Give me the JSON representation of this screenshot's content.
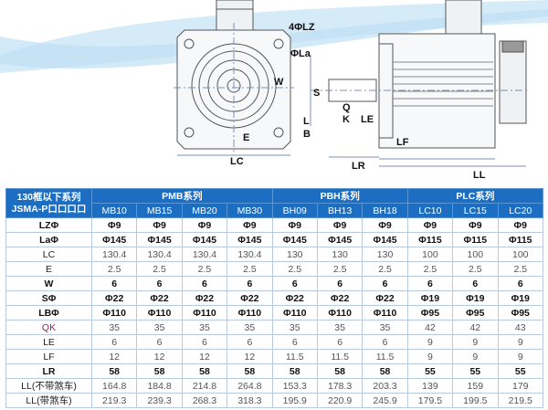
{
  "diagram": {
    "labels": {
      "lz": "4ΦLZ",
      "la": "ΦLa",
      "w": "W",
      "e": "E",
      "lc": "LC",
      "s": "S",
      "q": "Q",
      "k": "K",
      "le": "LE",
      "l": "L",
      "b": "B",
      "lf": "LF",
      "lr": "LR",
      "ll": "LL"
    }
  },
  "table": {
    "corner": [
      "130框以下系列",
      "JSMA-P口口口口"
    ],
    "groups": [
      "PMB系列",
      "PBH系列",
      "PLC系列"
    ],
    "models": [
      "MB10",
      "MB15",
      "MB20",
      "MB30",
      "BH09",
      "BH13",
      "BH18",
      "LC10",
      "LC15",
      "LC20"
    ],
    "rows": [
      {
        "label": "LZΦ",
        "values": [
          "Φ9",
          "Φ9",
          "Φ9",
          "Φ9",
          "Φ9",
          "Φ9",
          "Φ9",
          "Φ9",
          "Φ9",
          "Φ9"
        ]
      },
      {
        "label": "LaΦ",
        "values": [
          "Φ145",
          "Φ145",
          "Φ145",
          "Φ145",
          "Φ145",
          "Φ145",
          "Φ145",
          "Φ115",
          "Φ115",
          "Φ115"
        ]
      },
      {
        "label": "LC",
        "values": [
          "130.4",
          "130.4",
          "130.4",
          "130.4",
          "130",
          "130",
          "130",
          "100",
          "100",
          "100"
        ]
      },
      {
        "label": "E",
        "values": [
          "2.5",
          "2.5",
          "2.5",
          "2.5",
          "2.5",
          "2.5",
          "2.5",
          "2.5",
          "2.5",
          "2.5"
        ]
      },
      {
        "label": "W",
        "values": [
          "6",
          "6",
          "6",
          "6",
          "6",
          "6",
          "6",
          "6",
          "6",
          "6"
        ]
      },
      {
        "label": "SΦ",
        "values": [
          "Φ22",
          "Φ22",
          "Φ22",
          "Φ22",
          "Φ22",
          "Φ22",
          "Φ22",
          "Φ19",
          "Φ19",
          "Φ19"
        ]
      },
      {
        "label": "LBΦ",
        "values": [
          "Φ110",
          "Φ110",
          "Φ110",
          "Φ110",
          "Φ110",
          "Φ110",
          "Φ110",
          "Φ95",
          "Φ95",
          "Φ95"
        ]
      },
      {
        "label": "QK",
        "values": [
          "35",
          "35",
          "35",
          "35",
          "35",
          "35",
          "35",
          "42",
          "42",
          "43"
        ]
      },
      {
        "label": "LE",
        "values": [
          "6",
          "6",
          "6",
          "6",
          "6",
          "6",
          "6",
          "9",
          "9",
          "9"
        ]
      },
      {
        "label": "LF",
        "values": [
          "12",
          "12",
          "12",
          "12",
          "11.5",
          "11.5",
          "11.5",
          "9",
          "9",
          "9"
        ]
      },
      {
        "label": "LR",
        "values": [
          "58",
          "58",
          "58",
          "58",
          "58",
          "58",
          "58",
          "55",
          "55",
          "55"
        ]
      },
      {
        "label": "LL(不带煞车)",
        "values": [
          "164.8",
          "184.8",
          "214.8",
          "264.8",
          "153.3",
          "178.3",
          "203.3",
          "139",
          "159",
          "179"
        ]
      },
      {
        "label": "LL(带煞车)",
        "values": [
          "219.3",
          "239.3",
          "268.3",
          "318.3",
          "195.9",
          "220.9",
          "245.9",
          "179.5",
          "199.5",
          "219.5"
        ]
      }
    ]
  },
  "colors": {
    "header": "#1b6ec2",
    "swoosh": "#cfe6f7"
  }
}
